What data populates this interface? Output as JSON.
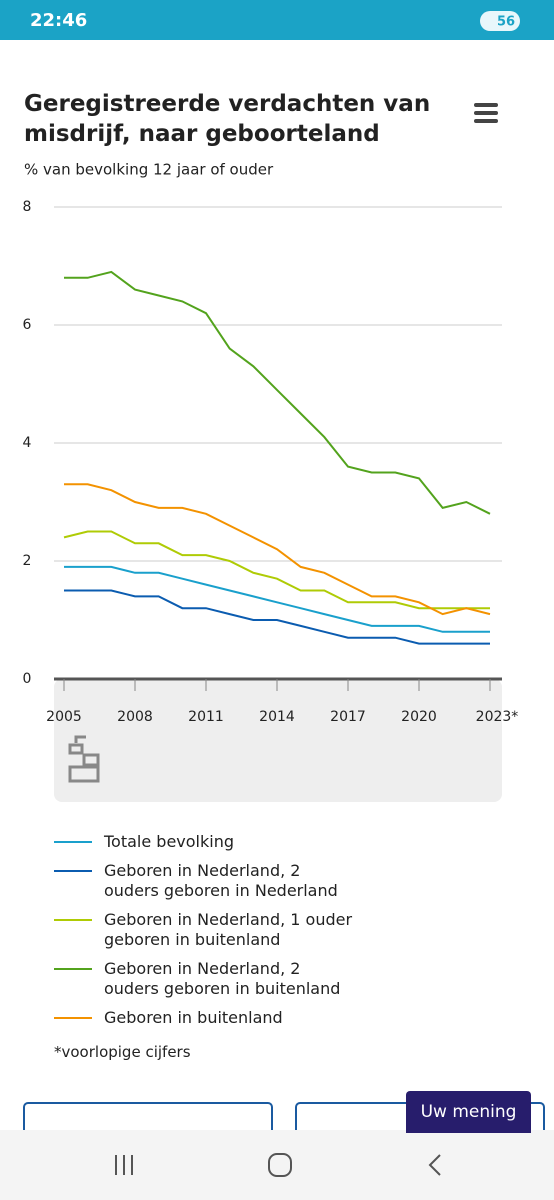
{
  "status_bar": {
    "time": "22:46",
    "battery": "56"
  },
  "chart_data": {
    "type": "line",
    "title": "Geregistreerde verdachten van misdrijf, naar geboorteland",
    "subtitle": "% van bevolking 12 jaar of ouder",
    "x": [
      2005,
      2006,
      2007,
      2008,
      2009,
      2010,
      2011,
      2012,
      2013,
      2014,
      2015,
      2016,
      2017,
      2018,
      2019,
      2020,
      2021,
      2022,
      2023
    ],
    "xlim": [
      2005,
      2023
    ],
    "xticks": [
      2005,
      2008,
      2011,
      2014,
      2017,
      2020,
      {
        "value": 2023,
        "label": "2023*"
      }
    ],
    "ylim": [
      0,
      8
    ],
    "yticks": [
      0,
      2,
      4,
      6,
      8
    ],
    "grid": true,
    "series": [
      {
        "name": "Totale bevolking",
        "color": "#1aa0cc",
        "values": [
          1.9,
          1.9,
          1.9,
          1.8,
          1.8,
          1.7,
          1.6,
          1.5,
          1.4,
          1.3,
          1.2,
          1.1,
          1.0,
          0.9,
          0.9,
          0.9,
          0.8,
          0.8,
          0.8
        ]
      },
      {
        "name": "Geboren in Nederland, 2 ouders geboren in Nederland",
        "color": "#0b5cb0",
        "values": [
          1.5,
          1.5,
          1.5,
          1.4,
          1.4,
          1.2,
          1.2,
          1.1,
          1.0,
          1.0,
          0.9,
          0.8,
          0.7,
          0.7,
          0.7,
          0.6,
          0.6,
          0.6,
          0.6
        ]
      },
      {
        "name": "Geboren in Nederland, 1 ouder geboren in buitenland",
        "color": "#afcb05",
        "values": [
          2.4,
          2.5,
          2.5,
          2.3,
          2.3,
          2.1,
          2.1,
          2.0,
          1.8,
          1.7,
          1.5,
          1.5,
          1.3,
          1.3,
          1.3,
          1.2,
          1.2,
          1.2,
          1.2
        ]
      },
      {
        "name": "Geboren in Nederland, 2 ouders geboren in buitenland",
        "color": "#53a31d",
        "values": [
          6.8,
          6.8,
          6.9,
          6.6,
          6.5,
          6.4,
          6.2,
          5.6,
          5.3,
          4.9,
          4.5,
          4.1,
          3.6,
          3.5,
          3.5,
          3.4,
          2.9,
          3.0,
          2.8
        ]
      },
      {
        "name": "Geboren in buitenland",
        "color": "#f39200",
        "values": [
          3.3,
          3.3,
          3.2,
          3.0,
          2.9,
          2.9,
          2.8,
          2.6,
          2.4,
          2.2,
          1.9,
          1.8,
          1.6,
          1.4,
          1.4,
          1.3,
          1.1,
          1.2,
          1.1
        ]
      }
    ],
    "note": "*voorlopige cijfers"
  },
  "feedback_button": "Uw mening"
}
